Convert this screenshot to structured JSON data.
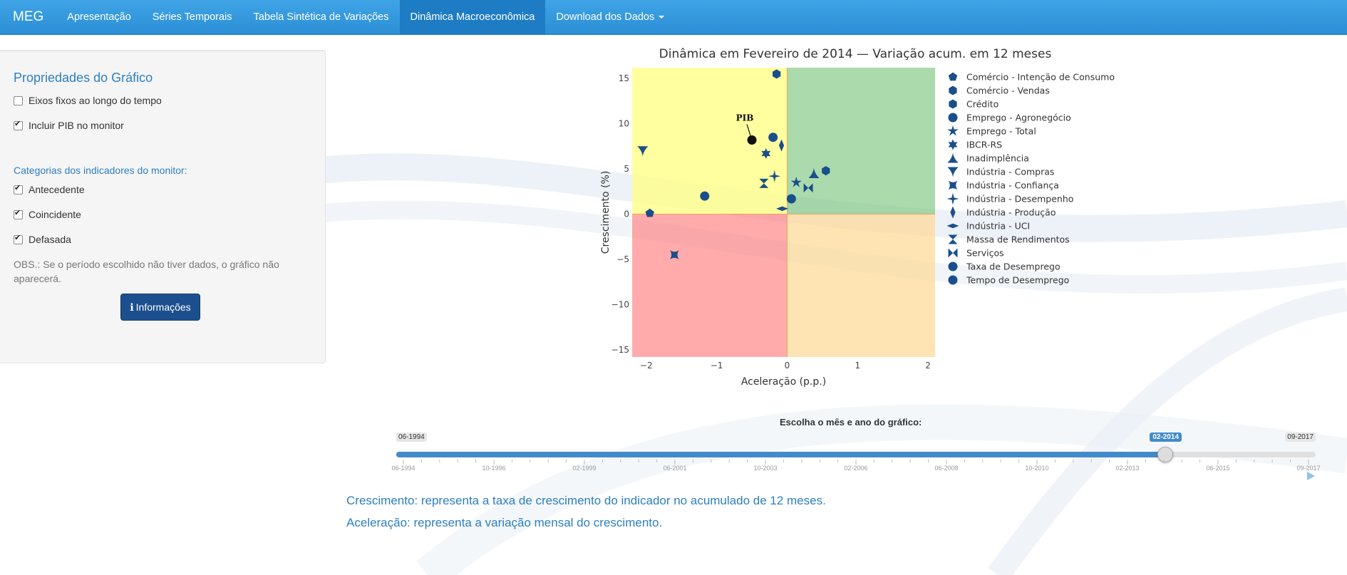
{
  "navbar": {
    "brand": "MEG",
    "items": [
      "Apresentação",
      "Séries Temporais",
      "Tabela Sintética de Variações",
      "Dinâmica Macroeconômica",
      "Download dos Dados"
    ],
    "active_index": 3
  },
  "sidebar": {
    "title": "Propriedades do Gráfico",
    "fixed_axes_label": "Eixos fixos ao longo do tempo",
    "fixed_axes_checked": false,
    "include_gdp_label": "Incluir PIB no monitor",
    "include_gdp_checked": true,
    "categories_title": "Categorias dos indicadores do monitor:",
    "categories": [
      {
        "label": "Antecedente",
        "checked": true
      },
      {
        "label": "Coincidente",
        "checked": true
      },
      {
        "label": "Defasada",
        "checked": true
      }
    ],
    "obs": "OBS.: Se o período escolhido não tiver dados, o gráfico não aparecerá.",
    "info_button": "Informações"
  },
  "chart_data": {
    "type": "scatter",
    "title": "Dinâmica em Fevereiro de 2014 — Variação acum. em 12 meses",
    "xlabel": "Aceleração (p.p.)",
    "ylabel": "Crescimento (%)",
    "xlim": [
      -2.2,
      2.1
    ],
    "ylim": [
      -15.8,
      16.2
    ],
    "xticks": [
      "−2",
      "−1",
      "0",
      "1",
      "2"
    ],
    "yticks": [
      "15",
      "10",
      "5",
      "0",
      "−5",
      "−10",
      "−15"
    ],
    "marker_color": "#1a4f8a",
    "quadrant_colors": {
      "top_left": "#ffff80",
      "top_right": "#66bb6a",
      "bottom_left": "#ff6666",
      "bottom_right": "#ffd68a"
    },
    "annotation": {
      "text": "PIB",
      "x": -0.5,
      "y": 8.2
    },
    "series": [
      {
        "name": "PIB",
        "symbol": "circle-black",
        "x": -0.5,
        "y": 8.2,
        "in_legend": false
      },
      {
        "name": "Comércio - Intenção de Consumo",
        "symbol": "pentagon",
        "x": -1.95,
        "y": 0.1
      },
      {
        "name": "Comércio - Vendas",
        "symbol": "hexagon",
        "x": 0.55,
        "y": 4.8
      },
      {
        "name": "Crédito",
        "symbol": "hexagon",
        "x": -0.15,
        "y": 15.5
      },
      {
        "name": "Emprego - Agronegócio",
        "symbol": "circle",
        "x": -1.17,
        "y": 2.0
      },
      {
        "name": "Emprego - Total",
        "symbol": "star",
        "x": 0.13,
        "y": 3.5
      },
      {
        "name": "IBCR-RS",
        "symbol": "hexagram",
        "x": -0.3,
        "y": 6.7
      },
      {
        "name": "Inadimplência",
        "symbol": "triangle-up",
        "x": 0.38,
        "y": 4.5
      },
      {
        "name": "Indústria - Compras",
        "symbol": "triangle-down",
        "x": -2.05,
        "y": 7.0
      },
      {
        "name": "Indústria - Confiança",
        "symbol": "square-x",
        "x": -1.6,
        "y": -4.5
      },
      {
        "name": "Indústria - Desempenho",
        "symbol": "star-4",
        "x": -0.18,
        "y": 4.2
      },
      {
        "name": "Indústria - Produção",
        "symbol": "diamond-tall",
        "x": -0.08,
        "y": 7.6
      },
      {
        "name": "Indústria - UCI",
        "symbol": "diamond-wide",
        "x": -0.07,
        "y": 0.6
      },
      {
        "name": "Massa de Rendimentos",
        "symbol": "hourglass",
        "x": -0.33,
        "y": 3.4
      },
      {
        "name": "Serviços",
        "symbol": "bowtie",
        "x": 0.3,
        "y": 2.9
      },
      {
        "name": "Taxa de Desemprego",
        "symbol": "circle",
        "x": 0.06,
        "y": 1.7
      },
      {
        "name": "Tempo de Desemprego",
        "symbol": "circle",
        "x": -0.2,
        "y": 8.5
      }
    ]
  },
  "slider": {
    "title": "Escolha o mês e ano do gráfico:",
    "min_label": "06-1994",
    "max_label": "09-2017",
    "current_label": "02-2014",
    "progress_fraction": 0.842,
    "tick_labels": [
      "06-1994",
      "10-1996",
      "02-1999",
      "06-2001",
      "10-2003",
      "02-2006",
      "06-2008",
      "10-2010",
      "02-2013",
      "06-2015",
      "09-2017"
    ]
  },
  "notes": {
    "growth": "Crescimento: representa a taxa de crescimento do indicador no acumulado de 12 meses.",
    "acceleration": "Aceleração: representa a variação mensal do crescimento."
  }
}
